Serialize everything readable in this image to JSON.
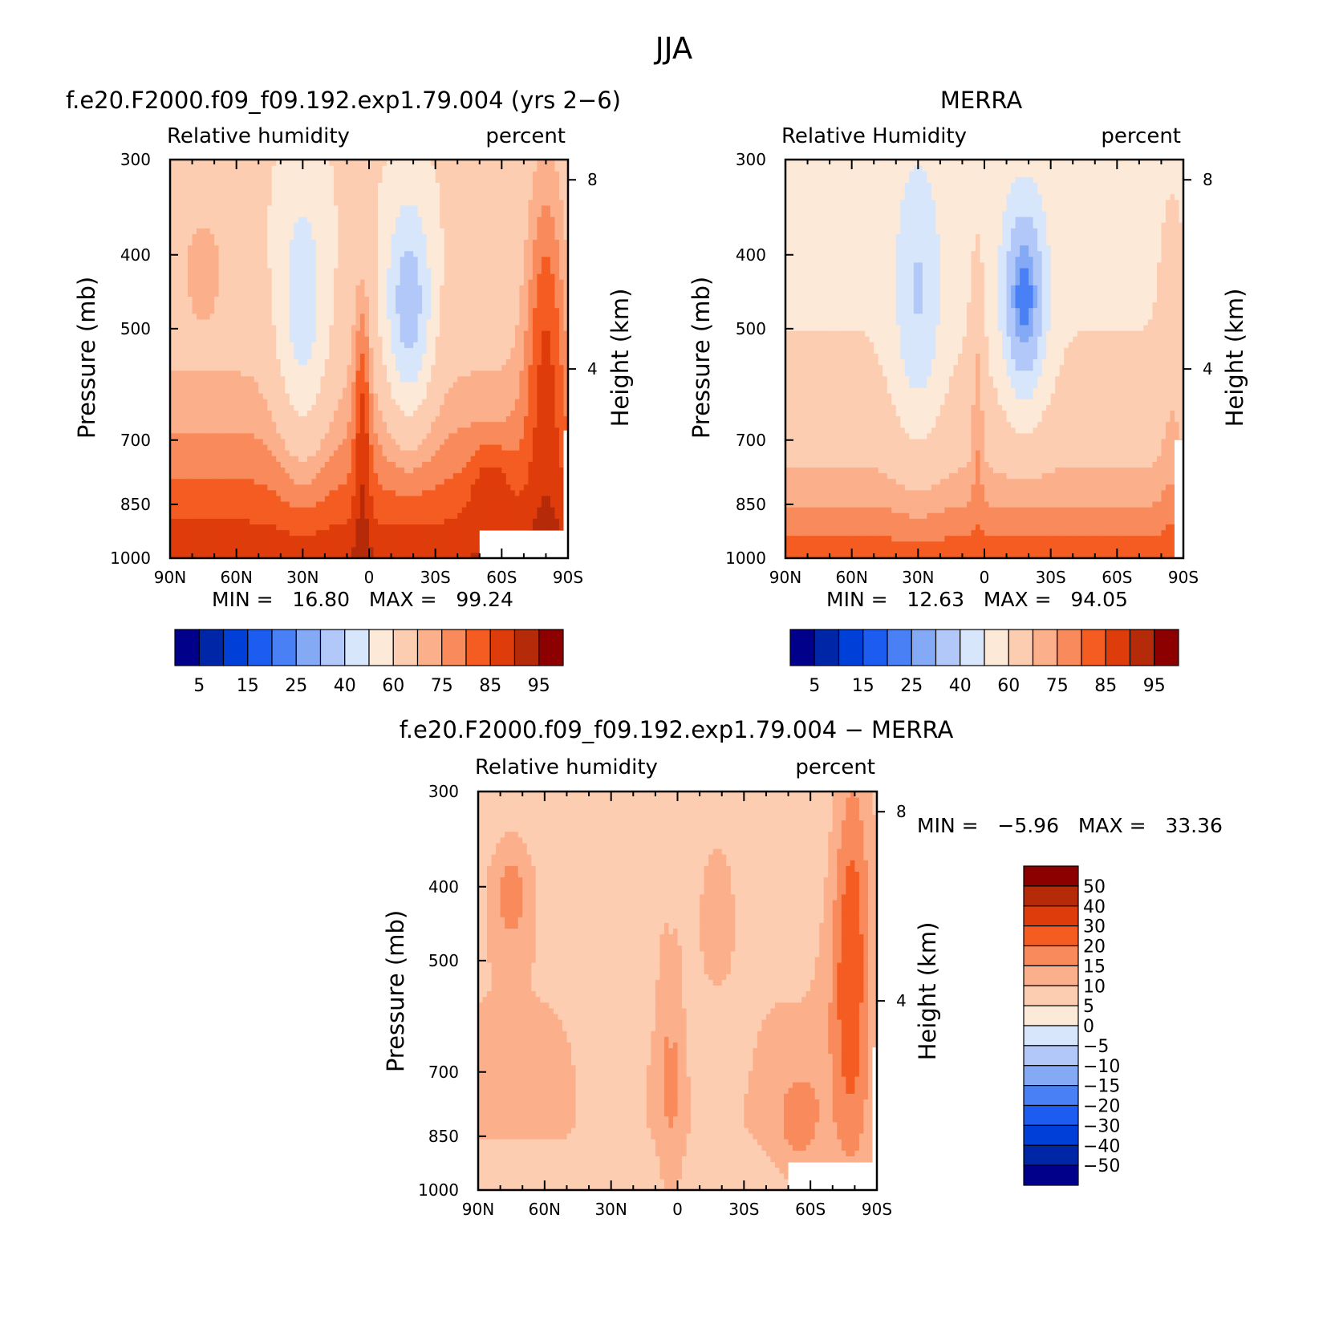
{
  "figure_title": "JJA",
  "chart_data": [
    {
      "type": "heatmap",
      "title": "f.e20.F2000.f09_f09.192.exp1.79.004 (yrs 2−6)",
      "left_label": "Relative humidity",
      "right_label": "percent",
      "ylabel": "Pressure (mb)",
      "y2label": "Height (km)",
      "xticks": [
        "90N",
        "60N",
        "30N",
        "0",
        "30S",
        "60S",
        "90S"
      ],
      "yticks": [
        300,
        400,
        500,
        700,
        850,
        1000
      ],
      "y2ticks": [
        8,
        4
      ],
      "ylim": [
        1000,
        300
      ],
      "stats_text": "MIN =   16.80   MAX =   99.24",
      "min": 16.8,
      "max": 99.24,
      "colorbar": {
        "orientation": "horizontal",
        "colors": [
          "#00008b",
          "#0026a8",
          "#0040d8",
          "#1d5cf0",
          "#4a80f5",
          "#84a9f5",
          "#b2c8f8",
          "#d7e6fb",
          "#fde9d8",
          "#fdcdb2",
          "#fbaf8a",
          "#f98a5c",
          "#f55c22",
          "#df3c0b",
          "#b52a08",
          "#8c0000"
        ],
        "labels": [
          "5",
          "15",
          "25",
          "40",
          "60",
          "75",
          "85",
          "95"
        ]
      }
    },
    {
      "type": "heatmap",
      "title": "MERRA",
      "left_label": "Relative Humidity",
      "right_label": "percent",
      "ylabel": "Pressure (mb)",
      "y2label": "Height (km)",
      "xticks": [
        "90N",
        "60N",
        "30N",
        "0",
        "30S",
        "60S",
        "90S"
      ],
      "yticks": [
        300,
        400,
        500,
        700,
        850,
        1000
      ],
      "y2ticks": [
        8,
        4
      ],
      "ylim": [
        1000,
        300
      ],
      "stats_text": "MIN =   12.63   MAX =   94.05",
      "min": 12.63,
      "max": 94.05,
      "colorbar": {
        "orientation": "horizontal",
        "colors": [
          "#00008b",
          "#0026a8",
          "#0040d8",
          "#1d5cf0",
          "#4a80f5",
          "#84a9f5",
          "#b2c8f8",
          "#d7e6fb",
          "#fde9d8",
          "#fdcdb2",
          "#fbaf8a",
          "#f98a5c",
          "#f55c22",
          "#df3c0b",
          "#b52a08",
          "#8c0000"
        ],
        "labels": [
          "5",
          "15",
          "25",
          "40",
          "60",
          "75",
          "85",
          "95"
        ]
      }
    },
    {
      "type": "heatmap",
      "title": "f.e20.F2000.f09_f09.192.exp1.79.004 − MERRA",
      "left_label": "Relative humidity",
      "right_label": "percent",
      "ylabel": "Pressure (mb)",
      "y2label": "Height (km)",
      "xticks": [
        "90N",
        "60N",
        "30N",
        "0",
        "30S",
        "60S",
        "90S"
      ],
      "yticks": [
        300,
        400,
        500,
        700,
        850,
        1000
      ],
      "y2ticks": [
        8,
        4
      ],
      "ylim": [
        1000,
        300
      ],
      "stats_text": "MIN =   −5.96   MAX =   33.36",
      "min": -5.96,
      "max": 33.36,
      "colorbar": {
        "orientation": "vertical",
        "colors": [
          "#8c0000",
          "#b52a08",
          "#df3c0b",
          "#f55c22",
          "#f98a5c",
          "#fbaf8a",
          "#fdcdb2",
          "#fde9d8",
          "#d7e6fb",
          "#b2c8f8",
          "#84a9f5",
          "#4a80f5",
          "#1d5cf0",
          "#0040d8",
          "#0026a8",
          "#00008b"
        ],
        "labels": [
          "50",
          "40",
          "30",
          "20",
          "15",
          "10",
          "5",
          "0",
          "−5",
          "−10",
          "−15",
          "−20",
          "−30",
          "−40",
          "−50"
        ]
      }
    }
  ]
}
